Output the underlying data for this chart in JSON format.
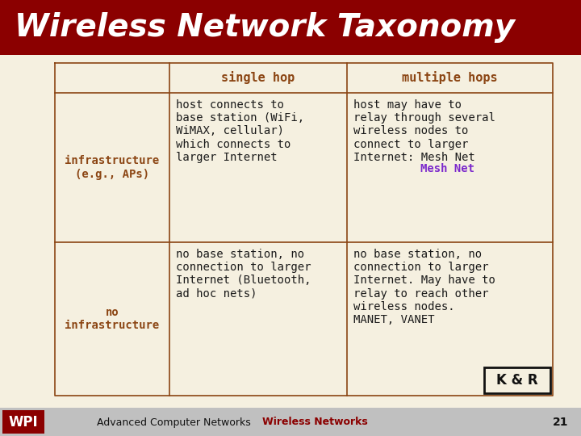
{
  "title": "Wireless Network Taxonomy",
  "title_bg": "#8B0000",
  "title_color": "#FFFFFF",
  "bg_color": "#F5F0E0",
  "table_border_color": "#8B4513",
  "header_color": "#8B4513",
  "row_label_color": "#8B4513",
  "body_text_color": "#1a1a1a",
  "mesh_net_color": "#7B28CC",
  "footer_bg": "#C0C0C0",
  "footer_text1": "Advanced Computer Networks",
  "footer_text2": "Wireless Networks",
  "footer_text2_color": "#8B0000",
  "footer_num": "21",
  "kr_label": "K & R",
  "col_headers": [
    "single hop",
    "multiple hops"
  ],
  "row_labels": [
    "infrastructure\n(e.g., APs)",
    "no\ninfrastructure"
  ],
  "cell_r1c1": "host connects to\nbase station (WiFi,\nWiMAX, cellular)\nwhich connects to\nlarger Internet",
  "cell_r1c2_pre": "host may have to\nrelay through several\nwireless nodes to\nconnect to larger\nInternet: ",
  "cell_r1c2_colored": "Mesh Net",
  "cell_r2c1": "no base station, no\nconnection to larger\nInternet (Bluetooth,\nad hoc nets)",
  "cell_r2c2": "no base station, no\nconnection to larger\nInternet. May have to\nrelay to reach other\nwireless nodes.\nMANET, VANET",
  "wpi_bg": "#8B0000",
  "wpi_text": "WPI"
}
